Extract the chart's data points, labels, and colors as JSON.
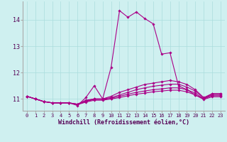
{
  "xlabel": "Windchill (Refroidissement éolien,°C)",
  "background_color": "#cff0f0",
  "grid_color": "#aadddd",
  "line_color": "#aa0088",
  "x_ticks": [
    0,
    1,
    2,
    3,
    4,
    5,
    6,
    7,
    8,
    9,
    10,
    11,
    12,
    13,
    14,
    15,
    16,
    17,
    18,
    19,
    20,
    21,
    22,
    23
  ],
  "y_ticks": [
    11,
    12,
    13,
    14
  ],
  "ylim": [
    10.55,
    14.7
  ],
  "xlim": [
    -0.5,
    23.5
  ],
  "series": [
    [
      11.1,
      11.0,
      10.9,
      10.85,
      10.85,
      10.85,
      10.75,
      11.05,
      11.5,
      11.0,
      12.2,
      14.35,
      14.1,
      14.3,
      14.05,
      13.85,
      12.7,
      12.75,
      11.5,
      11.35,
      11.15,
      11.0,
      11.2,
      11.2
    ],
    [
      11.1,
      11.0,
      10.9,
      10.85,
      10.85,
      10.85,
      10.8,
      10.95,
      11.0,
      11.0,
      11.1,
      11.25,
      11.35,
      11.45,
      11.55,
      11.6,
      11.65,
      11.7,
      11.65,
      11.55,
      11.35,
      11.05,
      11.2,
      11.2
    ],
    [
      11.1,
      11.0,
      10.9,
      10.85,
      10.85,
      10.85,
      10.8,
      10.92,
      11.0,
      11.0,
      11.05,
      11.15,
      11.25,
      11.35,
      11.42,
      11.48,
      11.52,
      11.56,
      11.56,
      11.45,
      11.3,
      11.03,
      11.15,
      11.15
    ],
    [
      11.1,
      11.0,
      10.9,
      10.85,
      10.85,
      10.85,
      10.8,
      10.9,
      10.98,
      10.98,
      11.02,
      11.1,
      11.18,
      11.25,
      11.3,
      11.35,
      11.38,
      11.42,
      11.42,
      11.35,
      11.22,
      11.0,
      11.12,
      11.12
    ],
    [
      11.1,
      11.0,
      10.9,
      10.85,
      10.85,
      10.85,
      10.78,
      10.88,
      10.95,
      10.95,
      11.0,
      11.05,
      11.12,
      11.18,
      11.22,
      11.27,
      11.3,
      11.33,
      11.33,
      11.27,
      11.15,
      10.98,
      11.08,
      11.08
    ]
  ],
  "marker": "D",
  "markersize": 1.8,
  "linewidth": 0.8,
  "tick_fontsize": 5.0,
  "xlabel_fontsize": 6.0
}
